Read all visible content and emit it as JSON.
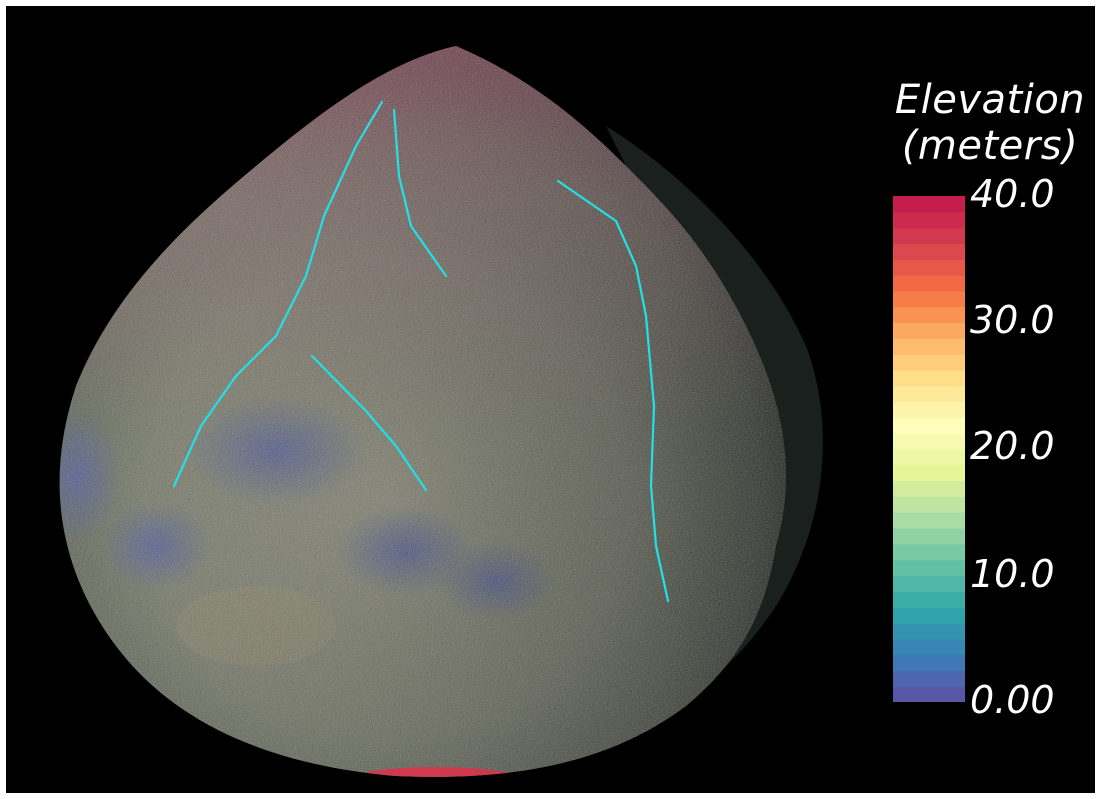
{
  "legend": {
    "title_line1": "Elevation",
    "title_line2": "(meters)",
    "ticks": [
      "40.0",
      "30.0",
      "20.0",
      "10.0",
      "0.00"
    ],
    "range": [
      0,
      40
    ],
    "colors": [
      "#5e4fa2",
      "#3b7eb8",
      "#2ea7a9",
      "#66c2a5",
      "#abdda4",
      "#e6f598",
      "#fefdbd",
      "#fee08b",
      "#fdae61",
      "#f46d43",
      "#d53e4f",
      "#c2174e"
    ]
  },
  "scene": {
    "background": "#000000",
    "lineament_color": "#22e0e6"
  }
}
